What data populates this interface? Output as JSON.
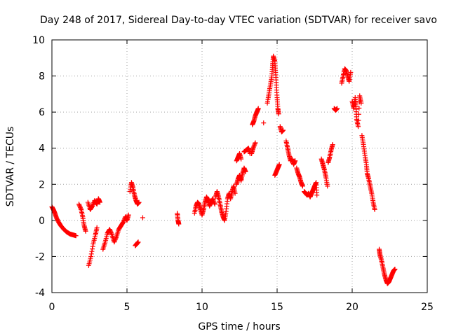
{
  "chart_data": {
    "type": "scatter",
    "title": "Day 248 of 2017, Sidereal Day-to-day VTEC variation (SDTVAR) for receiver savo",
    "xlabel": "GPS time / hours",
    "ylabel": "SDTVAR / TECUs",
    "xlim": [
      0,
      25
    ],
    "ylim": [
      -4,
      10
    ],
    "xticks": [
      "0",
      "5",
      "10",
      "15",
      "20",
      "25"
    ],
    "yticks": [
      "-4",
      "-2",
      "0",
      "2",
      "4",
      "6",
      "8",
      "10"
    ],
    "grid": true,
    "marker": "+",
    "series": [
      {
        "name": "SDTVAR",
        "color": "#ff0000",
        "segments": [
          [
            [
              0.0,
              0.75
            ],
            [
              0.1,
              0.6
            ],
            [
              0.2,
              0.4
            ],
            [
              0.3,
              0.15
            ],
            [
              0.45,
              -0.1
            ],
            [
              0.6,
              -0.3
            ],
            [
              0.8,
              -0.5
            ],
            [
              1.0,
              -0.65
            ],
            [
              1.2,
              -0.75
            ],
            [
              1.4,
              -0.8
            ],
            [
              1.6,
              -0.85
            ]
          ],
          [
            [
              1.8,
              0.9
            ],
            [
              1.95,
              0.6
            ],
            [
              2.05,
              0.2
            ],
            [
              2.15,
              -0.3
            ],
            [
              2.25,
              -0.6
            ]
          ],
          [
            [
              2.45,
              -2.5
            ],
            [
              2.6,
              -2.0
            ],
            [
              2.75,
              -1.3
            ],
            [
              2.9,
              -0.8
            ],
            [
              3.0,
              -0.4
            ]
          ],
          [
            [
              2.4,
              1.0
            ],
            [
              2.55,
              0.6
            ],
            [
              2.7,
              0.8
            ],
            [
              2.85,
              1.1
            ],
            [
              3.0,
              0.9
            ],
            [
              3.1,
              1.2
            ],
            [
              3.2,
              1.0
            ]
          ],
          [
            [
              3.4,
              -1.6
            ],
            [
              3.55,
              -1.2
            ],
            [
              3.7,
              -0.7
            ],
            [
              3.85,
              -0.5
            ],
            [
              4.0,
              -0.8
            ],
            [
              4.15,
              -1.2
            ],
            [
              4.3,
              -0.9
            ],
            [
              4.45,
              -0.5
            ],
            [
              4.6,
              -0.3
            ],
            [
              4.75,
              -0.1
            ],
            [
              4.9,
              0.2
            ],
            [
              5.0,
              0.0
            ],
            [
              5.1,
              0.3
            ]
          ],
          [
            [
              5.2,
              1.6
            ],
            [
              5.3,
              2.1
            ],
            [
              5.4,
              1.8
            ],
            [
              5.5,
              1.4
            ],
            [
              5.6,
              1.1
            ],
            [
              5.7,
              0.9
            ],
            [
              5.8,
              1.0
            ]
          ],
          [
            [
              5.55,
              -1.4
            ],
            [
              5.65,
              -1.3
            ],
            [
              5.75,
              -1.2
            ]
          ],
          [
            [
              6.05,
              0.15
            ]
          ],
          [
            [
              8.35,
              0.4
            ],
            [
              8.4,
              0.0
            ],
            [
              8.45,
              -0.2
            ]
          ],
          [
            [
              9.5,
              0.4
            ],
            [
              9.6,
              0.8
            ],
            [
              9.7,
              1.0
            ],
            [
              9.8,
              0.9
            ],
            [
              9.9,
              0.6
            ],
            [
              10.0,
              0.3
            ],
            [
              10.1,
              0.6
            ],
            [
              10.2,
              1.0
            ],
            [
              10.3,
              1.3
            ],
            [
              10.4,
              1.1
            ],
            [
              10.5,
              0.8
            ],
            [
              10.6,
              1.0
            ],
            [
              10.7,
              1.2
            ],
            [
              10.85,
              0.9
            ]
          ],
          [
            [
              10.9,
              1.3
            ],
            [
              11.0,
              1.6
            ],
            [
              11.1,
              1.3
            ],
            [
              11.2,
              0.9
            ],
            [
              11.3,
              0.5
            ],
            [
              11.4,
              0.2
            ],
            [
              11.5,
              0.0
            ],
            [
              11.6,
              0.5
            ],
            [
              11.7,
              1.2
            ],
            [
              11.8,
              1.5
            ],
            [
              11.9,
              1.2
            ],
            [
              12.0,
              1.6
            ],
            [
              12.1,
              1.9
            ],
            [
              12.2,
              1.5
            ]
          ],
          [
            [
              12.3,
              2.0
            ],
            [
              12.4,
              2.3
            ],
            [
              12.5,
              2.5
            ],
            [
              12.6,
              2.2
            ],
            [
              12.7,
              2.6
            ],
            [
              12.8,
              2.9
            ],
            [
              12.9,
              2.7
            ]
          ],
          [
            [
              12.3,
              3.3
            ],
            [
              12.4,
              3.5
            ],
            [
              12.5,
              3.7
            ],
            [
              12.6,
              3.4
            ]
          ],
          [
            [
              12.8,
              3.8
            ],
            [
              12.95,
              3.9
            ],
            [
              13.1,
              4.0
            ],
            [
              13.2,
              3.7
            ]
          ],
          [
            [
              13.3,
              3.7
            ],
            [
              13.4,
              4.0
            ],
            [
              13.55,
              4.3
            ]
          ],
          [
            [
              13.35,
              5.3
            ],
            [
              13.45,
              5.5
            ],
            [
              13.55,
              5.8
            ],
            [
              13.65,
              6.0
            ],
            [
              13.75,
              6.2
            ]
          ],
          [
            [
              14.1,
              5.4
            ]
          ],
          [
            [
              14.35,
              6.5
            ],
            [
              14.45,
              7.0
            ],
            [
              14.55,
              7.5
            ],
            [
              14.65,
              8.0
            ],
            [
              14.7,
              8.6
            ],
            [
              14.75,
              9.1
            ],
            [
              14.85,
              8.8
            ],
            [
              14.9,
              8.2
            ],
            [
              14.95,
              7.5
            ],
            [
              15.0,
              6.8
            ],
            [
              15.05,
              6.2
            ],
            [
              15.1,
              5.9
            ]
          ],
          [
            [
              14.85,
              2.5
            ],
            [
              14.95,
              2.7
            ],
            [
              15.05,
              2.9
            ],
            [
              15.15,
              3.1
            ]
          ],
          [
            [
              15.2,
              5.2
            ],
            [
              15.3,
              4.9
            ],
            [
              15.4,
              5.0
            ]
          ],
          [
            [
              15.6,
              4.4
            ],
            [
              15.7,
              4.0
            ],
            [
              15.8,
              3.6
            ],
            [
              15.9,
              3.3
            ],
            [
              16.0,
              3.4
            ],
            [
              16.1,
              3.1
            ],
            [
              16.2,
              3.3
            ]
          ],
          [
            [
              16.3,
              2.9
            ],
            [
              16.4,
              2.6
            ],
            [
              16.5,
              2.4
            ],
            [
              16.6,
              2.1
            ],
            [
              16.7,
              1.9
            ]
          ],
          [
            [
              16.8,
              1.6
            ],
            [
              16.9,
              1.5
            ],
            [
              17.0,
              1.4
            ],
            [
              17.1,
              1.5
            ],
            [
              17.2,
              1.3
            ],
            [
              17.3,
              1.5
            ],
            [
              17.4,
              1.7
            ],
            [
              17.5,
              1.9
            ],
            [
              17.6,
              2.1
            ],
            [
              17.65,
              1.4
            ]
          ],
          [
            [
              17.95,
              3.4
            ],
            [
              18.05,
              3.1
            ],
            [
              18.15,
              2.8
            ],
            [
              18.25,
              2.4
            ],
            [
              18.35,
              1.9
            ]
          ],
          [
            [
              18.4,
              3.2
            ],
            [
              18.5,
              3.5
            ],
            [
              18.6,
              3.9
            ],
            [
              18.7,
              4.2
            ]
          ],
          [
            [
              18.8,
              6.2
            ],
            [
              18.9,
              6.1
            ],
            [
              19.0,
              6.2
            ]
          ],
          [
            [
              19.3,
              7.6
            ],
            [
              19.4,
              8.0
            ],
            [
              19.5,
              8.4
            ],
            [
              19.6,
              8.3
            ],
            [
              19.7,
              8.0
            ],
            [
              19.8,
              7.7
            ],
            [
              19.9,
              8.2
            ]
          ],
          [
            [
              20.0,
              6.6
            ],
            [
              20.1,
              6.2
            ],
            [
              20.2,
              6.8
            ],
            [
              20.25,
              6.3
            ],
            [
              20.3,
              5.6
            ],
            [
              20.4,
              5.2
            ],
            [
              20.5,
              6.9
            ],
            [
              20.6,
              6.5
            ]
          ],
          [
            [
              20.65,
              4.7
            ],
            [
              20.75,
              4.2
            ],
            [
              20.85,
              3.6
            ],
            [
              20.95,
              3.1
            ],
            [
              21.0,
              2.6
            ],
            [
              21.1,
              2.3
            ],
            [
              21.2,
              1.9
            ],
            [
              21.3,
              1.5
            ],
            [
              21.4,
              1.0
            ],
            [
              21.5,
              0.6
            ]
          ],
          [
            [
              21.8,
              -1.6
            ],
            [
              21.85,
              -1.9
            ],
            [
              21.95,
              -2.2
            ],
            [
              22.05,
              -2.6
            ],
            [
              22.15,
              -3.0
            ],
            [
              22.25,
              -3.3
            ],
            [
              22.35,
              -3.5
            ],
            [
              22.45,
              -3.4
            ],
            [
              22.55,
              -3.2
            ],
            [
              22.65,
              -3.0
            ],
            [
              22.75,
              -2.8
            ],
            [
              22.85,
              -2.7
            ]
          ]
        ]
      }
    ]
  }
}
